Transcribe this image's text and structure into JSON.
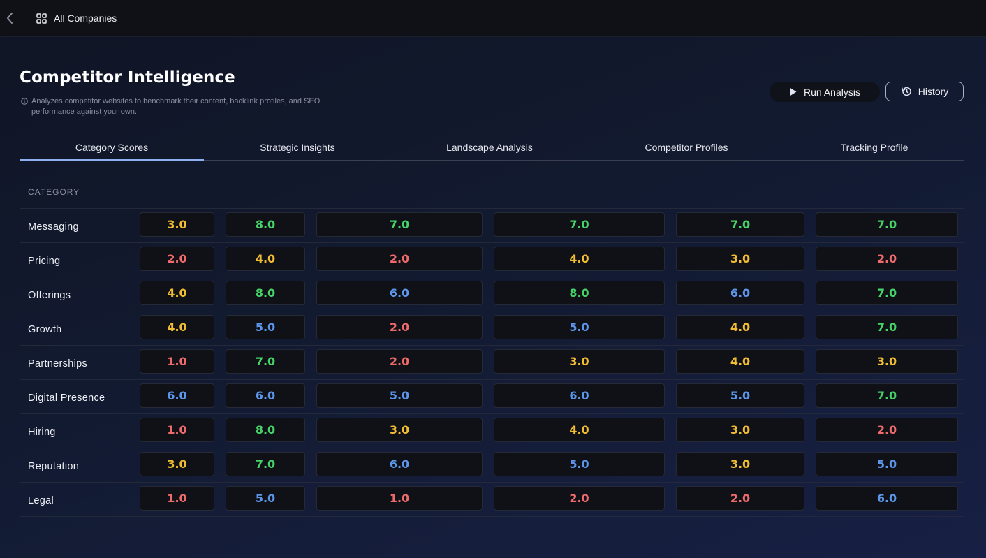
{
  "topbar": {
    "back_icon": "chevron-left-icon",
    "nav_icon": "grid-icon",
    "all_companies_label": "All Companies"
  },
  "header": {
    "title": "Competitor Intelligence",
    "description": "Analyzes competitor websites to benchmark their content, backlink profiles, and SEO performance against your own.",
    "info_icon": "info-icon"
  },
  "actions": {
    "run_label": "Run Analysis",
    "run_icon": "play-icon",
    "history_label": "History",
    "history_icon": "history-icon"
  },
  "tabs": [
    {
      "label": "Category Scores",
      "active": true
    },
    {
      "label": "Strategic Insights",
      "active": false
    },
    {
      "label": "Landscape Analysis",
      "active": false
    },
    {
      "label": "Competitor Profiles",
      "active": false
    },
    {
      "label": "Tracking Profile",
      "active": false
    }
  ],
  "table": {
    "category_header": "CATEGORY",
    "rows": [
      {
        "category": "Messaging",
        "scores": [
          "3.0",
          "8.0",
          "7.0",
          "7.0",
          "7.0",
          "7.0"
        ]
      },
      {
        "category": "Pricing",
        "scores": [
          "2.0",
          "4.0",
          "2.0",
          "4.0",
          "3.0",
          "2.0"
        ]
      },
      {
        "category": "Offerings",
        "scores": [
          "4.0",
          "8.0",
          "6.0",
          "8.0",
          "6.0",
          "7.0"
        ]
      },
      {
        "category": "Growth",
        "scores": [
          "4.0",
          "5.0",
          "2.0",
          "5.0",
          "4.0",
          "7.0"
        ]
      },
      {
        "category": "Partnerships",
        "scores": [
          "1.0",
          "7.0",
          "2.0",
          "3.0",
          "4.0",
          "3.0"
        ]
      },
      {
        "category": "Digital Presence",
        "scores": [
          "6.0",
          "6.0",
          "5.0",
          "6.0",
          "5.0",
          "7.0"
        ]
      },
      {
        "category": "Hiring",
        "scores": [
          "1.0",
          "8.0",
          "3.0",
          "4.0",
          "3.0",
          "2.0"
        ]
      },
      {
        "category": "Reputation",
        "scores": [
          "3.0",
          "7.0",
          "6.0",
          "5.0",
          "3.0",
          "5.0"
        ]
      },
      {
        "category": "Legal",
        "scores": [
          "1.0",
          "5.0",
          "1.0",
          "2.0",
          "2.0",
          "6.0"
        ]
      }
    ]
  },
  "score_colors": {
    "low": "#ef6b6b",
    "mid": "#f2bd32",
    "good": "#5c97ec",
    "high": "#46d469"
  },
  "accent_color": "#8fb0f0"
}
